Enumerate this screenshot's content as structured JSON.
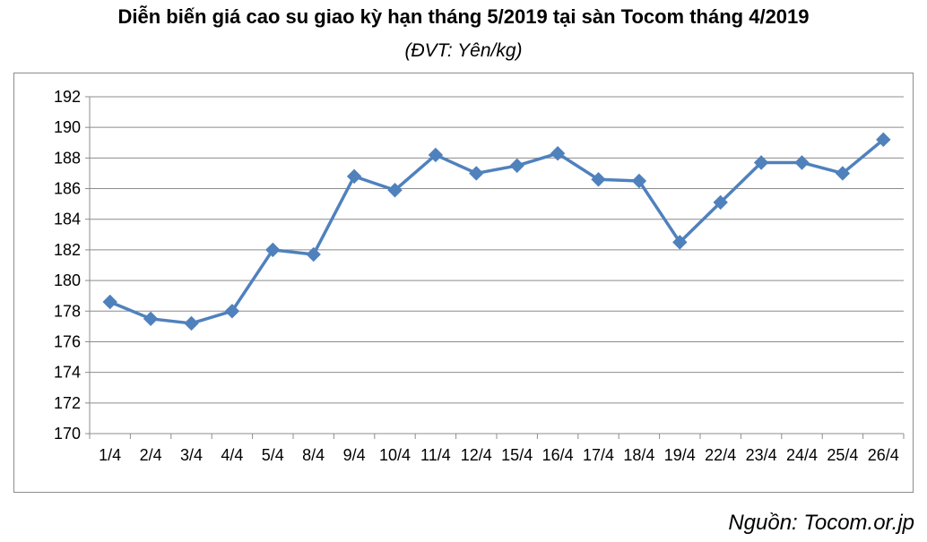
{
  "chart_data": {
    "type": "line",
    "title": "Diễn biến giá cao su giao kỳ hạn tháng 5/2019 tại sàn Tocom tháng 4/2019",
    "subtitle": "(ĐVT: Yên/kg)",
    "xlabel": "",
    "ylabel": "",
    "categories": [
      "1/4",
      "2/4",
      "3/4",
      "4/4",
      "5/4",
      "8/4",
      "9/4",
      "10/4",
      "11/4",
      "12/4",
      "15/4",
      "16/4",
      "17/4",
      "18/4",
      "19/4",
      "22/4",
      "23/4",
      "24/4",
      "25/4",
      "26/4"
    ],
    "series": [
      {
        "values": [
          178.6,
          177.5,
          177.2,
          178.0,
          182.0,
          181.7,
          186.8,
          185.9,
          188.2,
          187.0,
          187.5,
          188.3,
          186.6,
          186.5,
          182.5,
          185.1,
          187.7,
          187.7,
          187.0,
          189.2
        ],
        "color": "#4f81bd"
      }
    ],
    "ylim": [
      170,
      192
    ],
    "yticks": [
      "170",
      "172",
      "174",
      "176",
      "178",
      "180",
      "182",
      "184",
      "186",
      "188",
      "190",
      "192"
    ],
    "grid": true,
    "legend": "none",
    "source": "Nguồn: Tocom.or.jp"
  }
}
